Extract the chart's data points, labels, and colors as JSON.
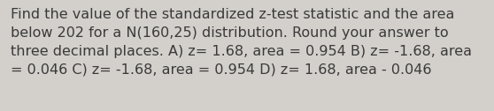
{
  "text": "Find the value of the standardized z-test statistic and the area\nbelow 202 for a N(160,25) distribution. Round your answer to\nthree decimal places. A) z= 1.68, area = 0.954 B) z= -1.68, area\n= 0.046 C) z= -1.68, area = 0.954 D) z= 1.68, area - 0.046",
  "background_color": "#d3d0cb",
  "text_color": "#3a3a3a",
  "font_size": 11.5,
  "fig_width": 5.58,
  "fig_height": 1.26,
  "dpi": 100
}
